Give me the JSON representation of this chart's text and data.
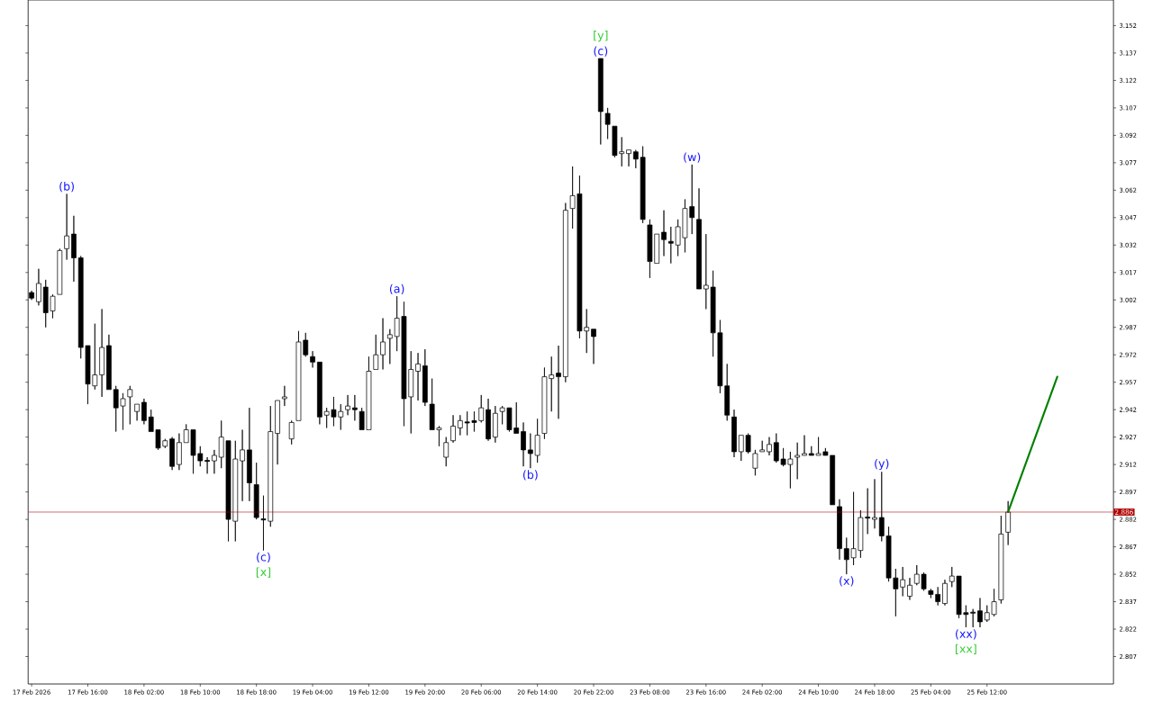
{
  "chart_data": {
    "type": "candlestick",
    "categories": [
      "17 Feb 2026",
      null,
      null,
      null,
      null,
      null,
      null,
      null,
      "17 Feb 16:00",
      null,
      null,
      null,
      null,
      null,
      null,
      null,
      "18 Feb 02:00",
      null,
      null,
      null,
      null,
      null,
      null,
      null,
      "18 Feb 10:00",
      null,
      null,
      null,
      null,
      null,
      null,
      null,
      "18 Feb 18:00",
      null,
      null,
      null,
      null,
      null,
      null,
      null,
      "19 Feb 04:00",
      null,
      null,
      null,
      null,
      null,
      null,
      null,
      "19 Feb 12:00",
      null,
      null,
      null,
      null,
      null,
      null,
      null,
      "19 Feb 20:00",
      null,
      null,
      null,
      null,
      null,
      null,
      null,
      "20 Feb 06:00",
      null,
      null,
      null,
      null,
      null,
      null,
      null,
      "20 Feb 14:00",
      null,
      null,
      null,
      null,
      null,
      null,
      null,
      "20 Feb 22:00",
      null,
      null,
      null,
      null,
      null,
      null,
      null,
      "23 Feb 08:00",
      null,
      null,
      null,
      null,
      null,
      null,
      null,
      "23 Feb 16:00",
      null,
      null,
      null,
      null,
      null,
      null,
      null,
      "24 Feb 02:00",
      null,
      null,
      null,
      null,
      null,
      null,
      null,
      "24 Feb 10:00",
      null,
      null,
      null,
      null,
      null,
      null,
      null,
      "24 Feb 18:00",
      null,
      null,
      null,
      null,
      null,
      null,
      null,
      "25 Feb 04:00",
      null,
      null,
      null,
      null,
      null,
      null,
      null,
      "25 Feb 12:00",
      null,
      null,
      null,
      null,
      null,
      null,
      null,
      null,
      null,
      null,
      null,
      null,
      null,
      null,
      null,
      null,
      null,
      null
    ],
    "ohlc": [
      [
        3.006,
        3.007,
        3.002,
        3.003
      ],
      [
        3.001,
        3.019,
        2.999,
        3.011
      ],
      [
        3.009,
        3.013,
        2.987,
        2.995
      ],
      [
        2.996,
        3.005,
        2.992,
        3.004
      ],
      [
        3.005,
        3.03,
        3.005,
        3.029
      ],
      [
        3.03,
        3.06,
        3.024,
        3.037
      ],
      [
        3.038,
        3.048,
        3.012,
        3.025
      ],
      [
        3.025,
        3.026,
        2.97,
        2.976
      ],
      [
        2.977,
        2.977,
        2.945,
        2.956
      ],
      [
        2.955,
        2.989,
        2.953,
        2.961
      ],
      [
        2.961,
        2.997,
        2.949,
        2.976
      ],
      [
        2.977,
        2.983,
        2.953,
        2.953
      ],
      [
        2.953,
        2.955,
        2.93,
        2.943
      ],
      [
        2.944,
        2.951,
        2.931,
        2.948
      ],
      [
        2.949,
        2.955,
        2.934,
        2.953
      ],
      [
        2.941,
        2.945,
        2.936,
        2.945
      ],
      [
        2.946,
        2.948,
        2.934,
        2.936
      ],
      [
        2.938,
        2.942,
        2.93,
        2.93
      ],
      [
        2.931,
        2.931,
        2.92,
        2.921
      ],
      [
        2.922,
        2.926,
        2.921,
        2.925
      ],
      [
        2.926,
        2.927,
        2.909,
        2.911
      ],
      [
        2.912,
        2.929,
        2.909,
        2.924
      ],
      [
        2.924,
        2.934,
        2.924,
        2.931
      ],
      [
        2.931,
        2.931,
        2.907,
        2.917
      ],
      [
        2.918,
        2.922,
        2.911,
        2.914
      ],
      [
        2.914,
        2.916,
        2.907,
        2.914
      ],
      [
        2.914,
        2.92,
        2.907,
        2.917
      ],
      [
        2.916,
        2.936,
        2.91,
        2.927
      ],
      [
        2.925,
        2.925,
        2.87,
        2.882
      ],
      [
        2.881,
        2.925,
        2.87,
        2.915
      ],
      [
        2.914,
        2.931,
        2.892,
        2.92
      ],
      [
        2.92,
        2.943,
        2.892,
        2.902
      ],
      [
        2.901,
        2.913,
        2.882,
        2.883
      ],
      [
        2.882,
        2.895,
        2.865,
        2.882
      ],
      [
        2.881,
        2.944,
        2.878,
        2.93
      ],
      [
        2.929,
        2.947,
        2.912,
        2.947
      ],
      [
        2.948,
        2.955,
        2.944,
        2.949
      ],
      [
        2.926,
        2.936,
        2.923,
        2.935
      ],
      [
        2.936,
        2.985,
        2.936,
        2.979
      ],
      [
        2.98,
        2.984,
        2.971,
        2.972
      ],
      [
        2.971,
        2.974,
        2.965,
        2.968
      ],
      [
        2.968,
        2.968,
        2.934,
        2.938
      ],
      [
        2.939,
        2.943,
        2.932,
        2.941
      ],
      [
        2.942,
        2.949,
        2.933,
        2.938
      ],
      [
        2.938,
        2.945,
        2.931,
        2.941
      ],
      [
        2.942,
        2.95,
        2.939,
        2.944
      ],
      [
        2.943,
        2.95,
        2.936,
        2.942
      ],
      [
        2.941,
        2.943,
        2.931,
        2.931
      ],
      [
        2.931,
        2.971,
        2.931,
        2.963
      ],
      [
        2.964,
        2.983,
        2.964,
        2.972
      ],
      [
        2.972,
        2.992,
        2.964,
        2.979
      ],
      [
        2.981,
        2.986,
        2.967,
        2.983
      ],
      [
        2.982,
        3.004,
        2.974,
        2.992
      ],
      [
        2.993,
        3.001,
        2.933,
        2.948
      ],
      [
        2.949,
        2.974,
        2.929,
        2.964
      ],
      [
        2.963,
        2.973,
        2.947,
        2.967
      ],
      [
        2.966,
        2.975,
        2.944,
        2.946
      ],
      [
        2.945,
        2.959,
        2.931,
        2.931
      ],
      [
        2.931,
        2.933,
        2.922,
        2.932
      ],
      [
        2.916,
        2.927,
        2.911,
        2.924
      ],
      [
        2.925,
        2.939,
        2.924,
        2.933
      ],
      [
        2.932,
        2.939,
        2.928,
        2.936
      ],
      [
        2.935,
        2.941,
        2.928,
        2.935
      ],
      [
        2.936,
        2.941,
        2.93,
        2.935
      ],
      [
        2.936,
        2.95,
        2.935,
        2.943
      ],
      [
        2.942,
        2.948,
        2.925,
        2.926
      ],
      [
        2.927,
        2.944,
        2.924,
        2.94
      ],
      [
        2.941,
        2.944,
        2.934,
        2.943
      ],
      [
        2.943,
        2.943,
        2.93,
        2.931
      ],
      [
        2.932,
        2.946,
        2.929,
        2.929
      ],
      [
        2.93,
        2.935,
        2.911,
        2.92
      ],
      [
        2.92,
        2.929,
        2.91,
        2.918
      ],
      [
        2.917,
        2.937,
        2.913,
        2.928
      ],
      [
        2.929,
        2.965,
        2.926,
        2.96
      ],
      [
        2.959,
        2.971,
        2.941,
        2.961
      ],
      [
        2.962,
        2.977,
        2.937,
        2.96
      ],
      [
        2.96,
        3.055,
        2.957,
        3.051
      ],
      [
        3.052,
        3.075,
        3.041,
        3.059
      ],
      [
        3.06,
        3.07,
        2.981,
        2.985
      ],
      [
        2.985,
        2.997,
        2.973,
        2.987
      ],
      [
        2.986,
        2.986,
        2.967,
        2.982
      ],
      [
        3.134,
        3.134,
        3.087,
        3.105
      ],
      [
        3.104,
        3.107,
        3.09,
        3.098
      ],
      [
        3.097,
        3.097,
        3.08,
        3.081
      ],
      [
        3.082,
        3.091,
        3.075,
        3.083
      ],
      [
        3.082,
        3.084,
        3.075,
        3.084
      ],
      [
        3.083,
        3.084,
        3.074,
        3.079
      ],
      [
        3.08,
        3.086,
        3.044,
        3.046
      ],
      [
        3.043,
        3.046,
        3.014,
        3.023
      ],
      [
        3.022,
        3.038,
        3.022,
        3.038
      ],
      [
        3.039,
        3.051,
        3.026,
        3.035
      ],
      [
        3.034,
        3.042,
        3.022,
        3.033
      ],
      [
        3.032,
        3.046,
        3.026,
        3.042
      ],
      [
        3.036,
        3.057,
        3.028,
        3.052
      ],
      [
        3.053,
        3.076,
        3.038,
        3.047
      ],
      [
        3.046,
        3.063,
        3.008,
        3.008
      ],
      [
        3.008,
        3.038,
        2.997,
        3.01
      ],
      [
        3.009,
        3.018,
        2.971,
        2.984
      ],
      [
        2.984,
        2.991,
        2.951,
        2.955
      ],
      [
        2.955,
        2.967,
        2.936,
        2.939
      ],
      [
        2.938,
        2.942,
        2.916,
        2.919
      ],
      [
        2.919,
        2.928,
        2.914,
        2.928
      ],
      [
        2.928,
        2.929,
        2.918,
        2.919
      ],
      [
        2.91,
        2.92,
        2.906,
        2.918
      ],
      [
        2.919,
        2.925,
        2.919,
        2.92
      ],
      [
        2.919,
        2.927,
        2.917,
        2.923
      ],
      [
        2.924,
        2.929,
        2.913,
        2.914
      ],
      [
        2.915,
        2.921,
        2.911,
        2.912
      ],
      [
        2.912,
        2.919,
        2.899,
        2.915
      ],
      [
        2.916,
        2.924,
        2.904,
        2.917
      ],
      [
        2.917,
        2.928,
        2.917,
        2.918
      ],
      [
        2.918,
        2.922,
        2.917,
        2.917
      ],
      [
        2.917,
        2.927,
        2.917,
        2.918
      ],
      [
        2.919,
        2.921,
        2.917,
        2.917
      ],
      [
        2.917,
        2.917,
        2.89,
        2.89
      ],
      [
        2.889,
        2.893,
        2.86,
        2.866
      ],
      [
        2.866,
        2.872,
        2.852,
        2.86
      ],
      [
        2.861,
        2.897,
        2.857,
        2.866
      ],
      [
        2.865,
        2.887,
        2.861,
        2.883
      ],
      [
        2.883,
        2.899,
        2.874,
        2.883
      ],
      [
        2.882,
        2.904,
        2.877,
        2.883
      ],
      [
        2.883,
        2.908,
        2.87,
        2.873
      ],
      [
        2.873,
        2.878,
        2.848,
        2.85
      ],
      [
        2.85,
        2.855,
        2.829,
        2.844
      ],
      [
        2.845,
        2.856,
        2.84,
        2.849
      ],
      [
        2.84,
        2.85,
        2.838,
        2.846
      ],
      [
        2.847,
        2.857,
        2.846,
        2.852
      ],
      [
        2.852,
        2.853,
        2.843,
        2.844
      ],
      [
        2.843,
        2.844,
        2.839,
        2.841
      ],
      [
        2.841,
        2.845,
        2.835,
        2.837
      ],
      [
        2.836,
        2.849,
        2.835,
        2.847
      ],
      [
        2.848,
        2.856,
        2.845,
        2.851
      ],
      [
        2.851,
        2.851,
        2.828,
        2.83
      ],
      [
        2.831,
        2.835,
        2.823,
        2.83
      ],
      [
        2.831,
        2.833,
        2.823,
        2.831
      ],
      [
        2.832,
        2.839,
        2.823,
        2.826
      ],
      [
        2.827,
        2.835,
        2.826,
        2.831
      ],
      [
        2.83,
        2.844,
        2.829,
        2.837
      ],
      [
        2.838,
        2.884,
        2.836,
        2.874
      ],
      [
        2.875,
        2.892,
        2.868,
        2.886
      ],
      null,
      null,
      null,
      null,
      null,
      null,
      null,
      null,
      null,
      null,
      null,
      null,
      null,
      null,
      null
    ],
    "series": [
      {
        "type": "line",
        "color": "#008000",
        "values": [
          null,
          null,
          null,
          null,
          null,
          null,
          null,
          null,
          null,
          null,
          null,
          null,
          null,
          null,
          null,
          null,
          null,
          null,
          null,
          null,
          null,
          null,
          null,
          null,
          null,
          null,
          null,
          null,
          null,
          null,
          null,
          null,
          null,
          null,
          null,
          null,
          null,
          null,
          null,
          null,
          null,
          null,
          null,
          null,
          null,
          null,
          null,
          null,
          null,
          null,
          null,
          null,
          null,
          null,
          null,
          null,
          null,
          null,
          null,
          null,
          null,
          null,
          null,
          null,
          null,
          null,
          null,
          null,
          null,
          null,
          null,
          null,
          null,
          null,
          null,
          null,
          null,
          null,
          null,
          null,
          null,
          null,
          null,
          null,
          null,
          null,
          null,
          null,
          null,
          null,
          null,
          null,
          null,
          null,
          null,
          null,
          null,
          null,
          null,
          null,
          null,
          null,
          null,
          null,
          null,
          null,
          null,
          null,
          null,
          null,
          null,
          null,
          null,
          null,
          null,
          null,
          null,
          null,
          null,
          null,
          null,
          null,
          null,
          null,
          null,
          null,
          null,
          null,
          null,
          null,
          null,
          null,
          null,
          null,
          null,
          null,
          null,
          null,
          null,
          2.886,
          null,
          null,
          null,
          null,
          null,
          null,
          2.96,
          null,
          null,
          null,
          null,
          null,
          null,
          null,
          null
        ]
      }
    ],
    "ylim": [
      2.792,
      3.166
    ],
    "yticks": [
      3.152,
      3.137,
      3.122,
      3.107,
      3.092,
      3.077,
      3.062,
      3.047,
      3.032,
      3.017,
      3.002,
      2.987,
      2.972,
      2.957,
      2.942,
      2.927,
      2.912,
      2.897,
      2.882,
      2.867,
      2.852,
      2.837,
      2.822,
      2.807
    ],
    "ref_lines": [
      {
        "axis": "y",
        "value": 2.886,
        "label": "2.886",
        "color": "#b00000"
      }
    ],
    "annotations": [
      "(b)",
      "(c)",
      "[x]",
      "(a)",
      "(b)",
      "(c)",
      "[y]",
      "(w)",
      "(x)",
      "(y)",
      "(xx)",
      "[xx]"
    ]
  }
}
